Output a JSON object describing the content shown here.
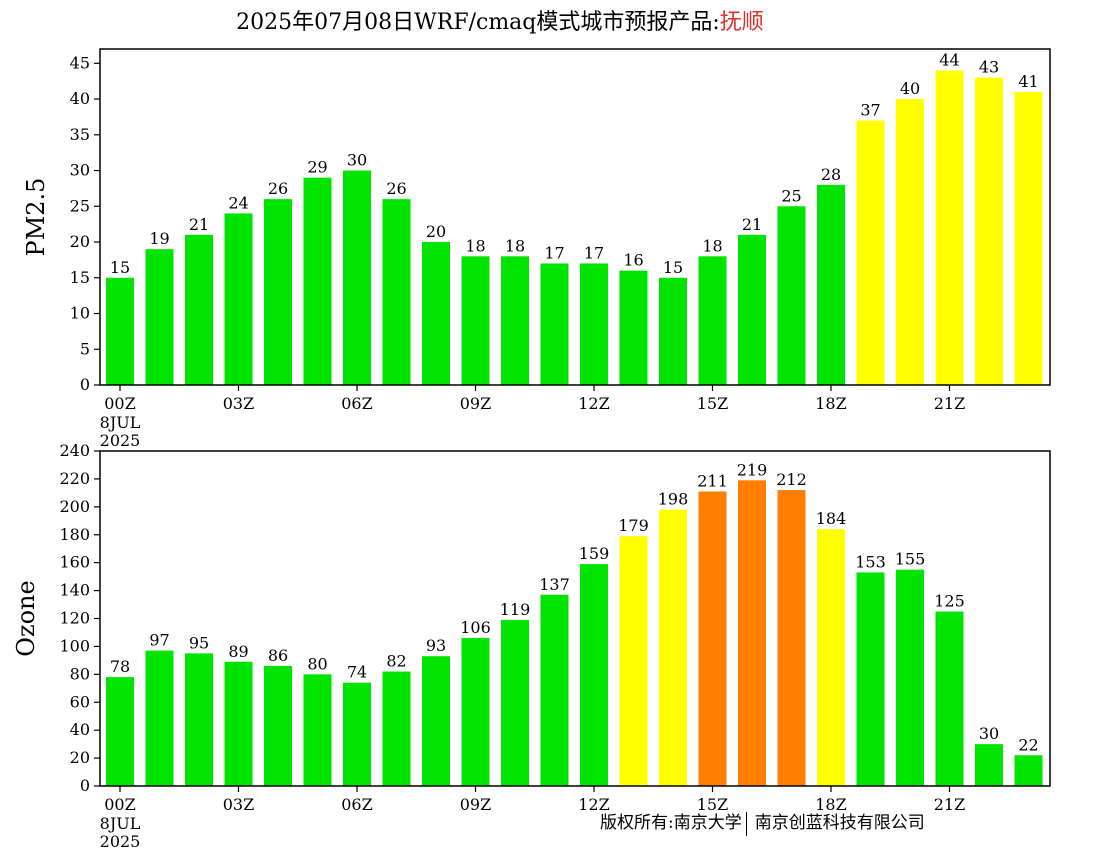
{
  "header": {
    "title_prefix": "2025年07月08日WRF/cmaq模式城市预报产品:",
    "city": "抚顺"
  },
  "footer": {
    "copyright_left": "版权所有:南京大学",
    "copyright_right": "南京创蓝科技有限公司"
  },
  "colors": {
    "good": "#00e400",
    "moderate": "#ffff00",
    "usg": "#ff7e00",
    "city_text": "#e0302a"
  },
  "chart_data": [
    {
      "type": "bar",
      "ylabel": "PM2.5",
      "ylim": [
        0,
        47
      ],
      "yticks": [
        0,
        5,
        10,
        15,
        20,
        25,
        30,
        35,
        40,
        45
      ],
      "tick_labels": [
        "00Z",
        "03Z",
        "06Z",
        "09Z",
        "12Z",
        "15Z",
        "18Z",
        "21Z"
      ],
      "date_label": [
        "8JUL",
        "2025"
      ],
      "hours": [
        0,
        1,
        2,
        3,
        4,
        5,
        6,
        7,
        8,
        9,
        10,
        11,
        12,
        13,
        14,
        15,
        16,
        17,
        18,
        19,
        20,
        21,
        22,
        23
      ],
      "values": [
        15,
        19,
        21,
        24,
        26,
        29,
        30,
        26,
        20,
        18,
        18,
        17,
        17,
        16,
        15,
        18,
        21,
        25,
        28,
        37,
        40,
        44,
        43,
        41
      ],
      "labels": [
        "15",
        "19",
        "21",
        "24",
        "26",
        "29",
        "30",
        "26",
        "20",
        "18",
        "18",
        "17",
        "17",
        "16",
        "15",
        "18",
        "21",
        "25",
        "28",
        "37",
        "40",
        "44",
        "43",
        "41"
      ],
      "color_levels": [
        "good",
        "good",
        "good",
        "good",
        "good",
        "good",
        "good",
        "good",
        "good",
        "good",
        "good",
        "good",
        "good",
        "good",
        "good",
        "good",
        "good",
        "good",
        "good",
        "moderate",
        "moderate",
        "moderate",
        "moderate",
        "moderate"
      ],
      "grid": false
    },
    {
      "type": "bar",
      "ylabel": "Ozone",
      "ylim": [
        0,
        240
      ],
      "yticks": [
        0,
        20,
        40,
        60,
        80,
        100,
        120,
        140,
        160,
        180,
        200,
        220,
        240
      ],
      "tick_labels": [
        "00Z",
        "03Z",
        "06Z",
        "09Z",
        "12Z",
        "15Z",
        "18Z",
        "21Z"
      ],
      "date_label": [
        "8JUL",
        "2025"
      ],
      "hours": [
        0,
        1,
        2,
        3,
        4,
        5,
        6,
        7,
        8,
        9,
        10,
        11,
        12,
        13,
        14,
        15,
        16,
        17,
        18,
        19,
        20,
        21,
        22,
        23
      ],
      "values": [
        78,
        97,
        95,
        89,
        86,
        80,
        74,
        82,
        93,
        106,
        119,
        137,
        159,
        179,
        198,
        211,
        219,
        212,
        184,
        153,
        155,
        125,
        30,
        22
      ],
      "labels": [
        "78",
        "97",
        "95",
        "89",
        "86",
        "80",
        "74",
        "82",
        "93",
        "106",
        "119",
        "137",
        "159",
        "179",
        "198",
        "211",
        "219",
        "212",
        "184",
        "153",
        "155",
        "125",
        "30",
        "22"
      ],
      "color_levels": [
        "good",
        "good",
        "good",
        "good",
        "good",
        "good",
        "good",
        "good",
        "good",
        "good",
        "good",
        "good",
        "good",
        "moderate",
        "moderate",
        "usg",
        "usg",
        "usg",
        "moderate",
        "good",
        "good",
        "good",
        "good",
        "good"
      ],
      "grid": false
    }
  ]
}
